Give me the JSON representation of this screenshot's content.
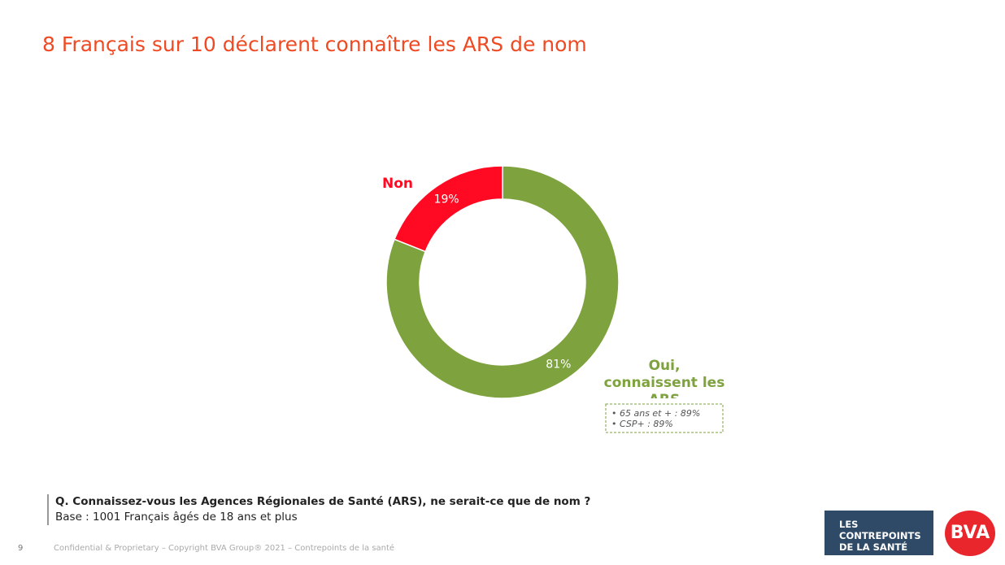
{
  "chart_data": {
    "type": "donut",
    "title": "8 Français sur 10 déclarent connaître les ARS de nom",
    "categories": [
      "Oui, connaissent les ARS",
      "Non"
    ],
    "values": [
      81,
      19
    ],
    "value_labels": [
      "81%",
      "19%"
    ],
    "colors": [
      "#7ea23d",
      "#ff0a22"
    ],
    "annotations": [
      "• 65 ans et + : 89%",
      "• CSP+ : 89%"
    ]
  },
  "question": "Q. Connaissez-vous les Agences Régionales de Santé (ARS), ne serait-ce que de nom ?",
  "base": "Base : 1001 Français âgés de 18 ans et plus",
  "page_number": "9",
  "footer": "Confidential & Proprietary – Copyright BVA Group® 2021 – Contrepoints de la santé",
  "logo_lines": [
    "LES CONTREPOINTS",
    "DE LA SANTÉ"
  ],
  "brand": "BVA"
}
